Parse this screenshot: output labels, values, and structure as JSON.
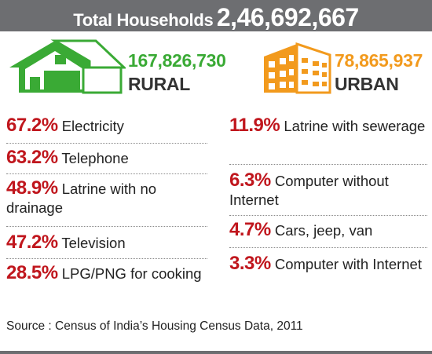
{
  "header": {
    "label": "Total Households",
    "value": "2,46,692,667"
  },
  "rural": {
    "count": "167,826,730",
    "label": "RURAL",
    "color": "#3aaa35",
    "icon": "house-icon"
  },
  "urban": {
    "count": "78,865,937",
    "label": "URBAN",
    "color": "#f29a1d",
    "icon": "building-icon"
  },
  "left_items": [
    {
      "pct": "67.2%",
      "text": " Electricity"
    },
    {
      "pct": "63.2%",
      "text": " Telephone"
    },
    {
      "pct": "48.9%",
      "text": " Latrine with no drainage"
    },
    {
      "pct": "47.2%",
      "text": " Television"
    },
    {
      "pct": "28.5%",
      "text": " LPG/PNG for cooking"
    }
  ],
  "right_items": [
    {
      "pct": "11.9%",
      "text": " Latrine with sewerage"
    },
    {
      "pct": "6.3%",
      "text": " Computer without Internet"
    },
    {
      "pct": "4.7%",
      "text": " Cars, jeep, van"
    },
    {
      "pct": "3.3%",
      "text": " Computer with Internet"
    }
  ],
  "source": "Source : Census of India’s Housing Census Data, 2011",
  "colors": {
    "header_bg": "#6d6e71",
    "percent": "#c0161d",
    "rural": "#3aaa35",
    "urban": "#f29a1d"
  }
}
